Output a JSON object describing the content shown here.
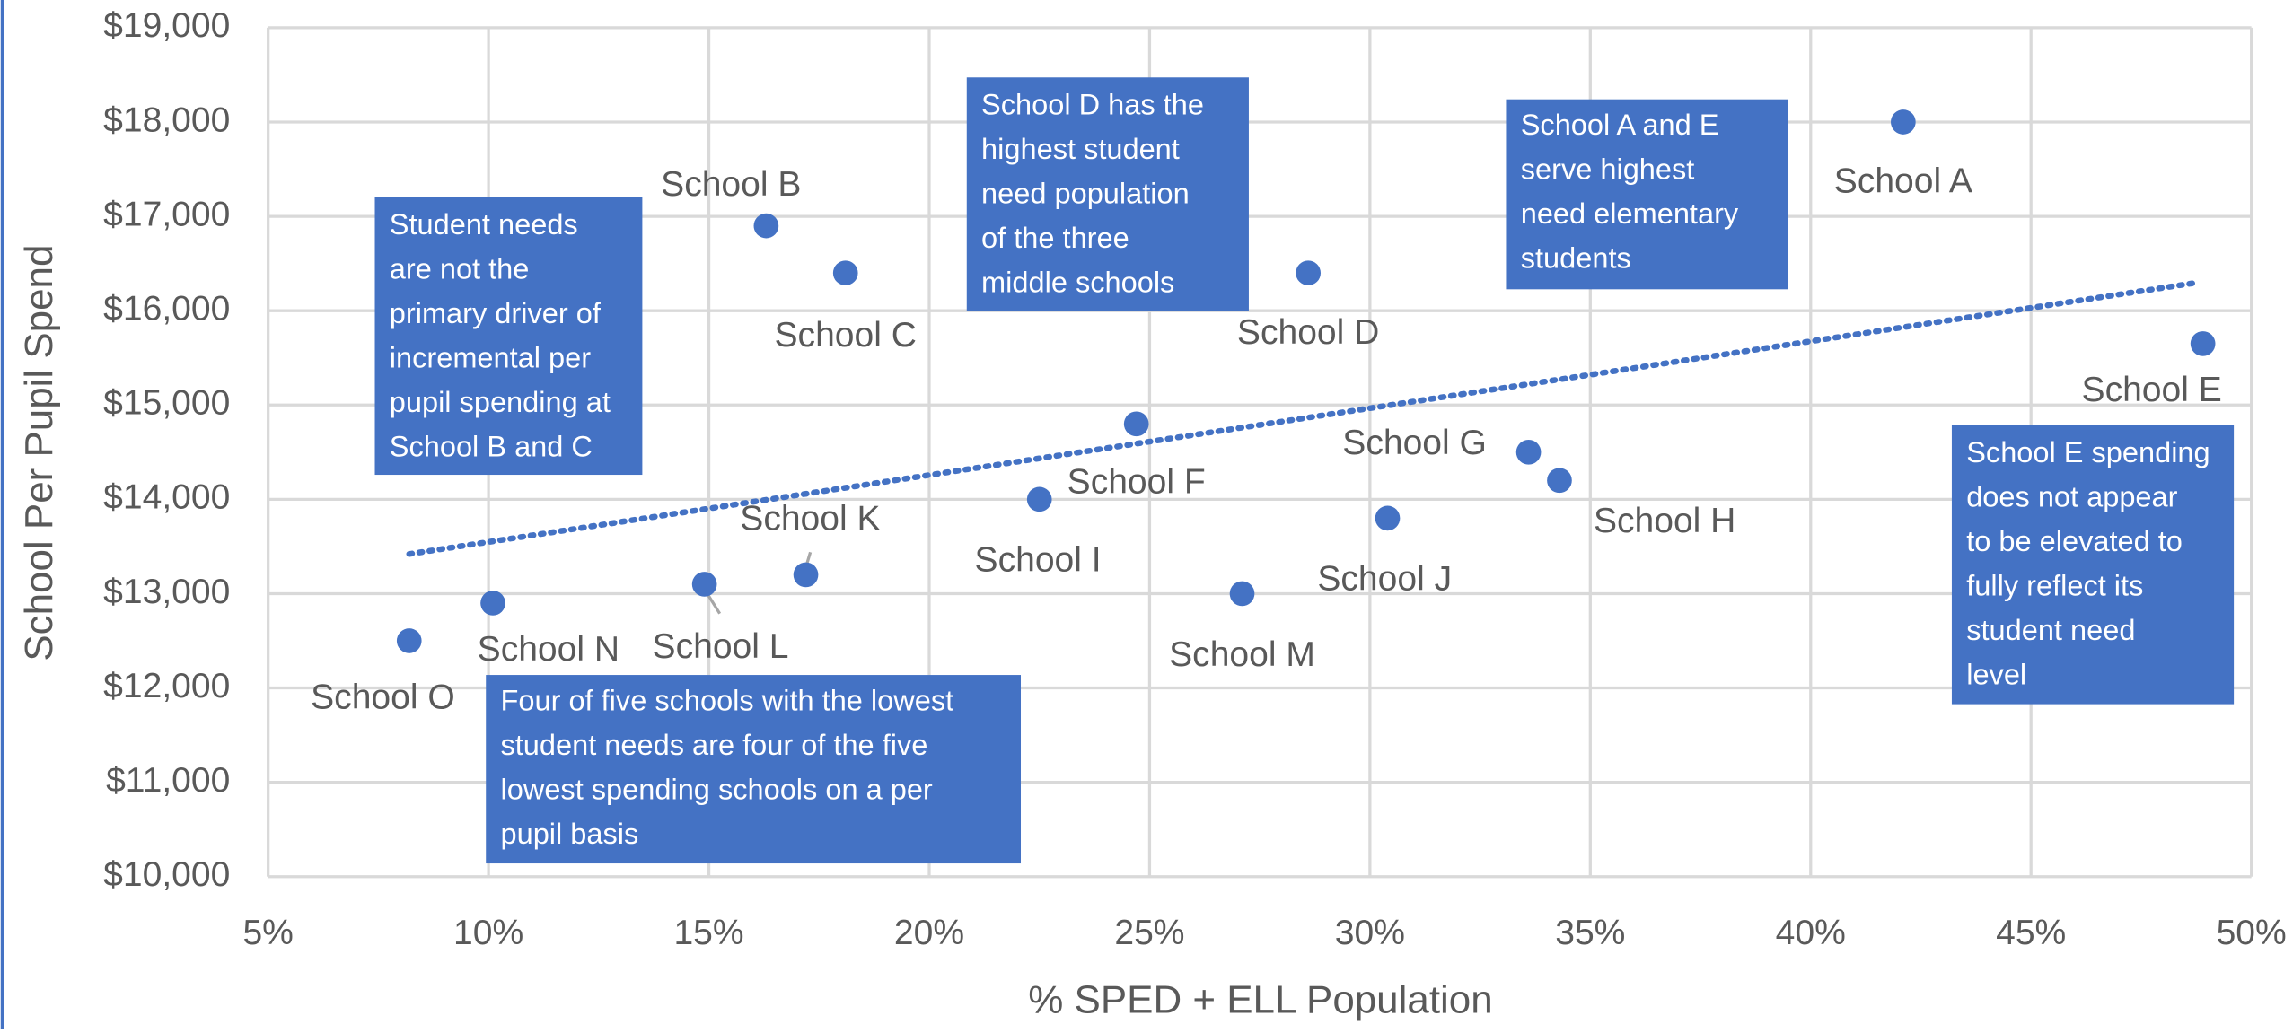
{
  "chart_data": {
    "type": "scatter",
    "xlabel": "% SPED + ELL Population",
    "ylabel": "School Per Pupil Spend",
    "series": [
      {
        "color": "#4472c4",
        "names": [
          "School O",
          "School N",
          "School L",
          "School K",
          "School B",
          "School C",
          "School I",
          "School F",
          "School M",
          "School D",
          "School J",
          "School G",
          "School H",
          "School A",
          "School E"
        ],
        "x": [
          8.2,
          10.1,
          14.9,
          17.2,
          16.3,
          18.1,
          22.5,
          24.7,
          27.1,
          28.6,
          30.4,
          33.6,
          34.3,
          42.1,
          48.9
        ],
        "values": [
          12500,
          12900,
          13100,
          13200,
          16900,
          16400,
          14000,
          14800,
          13000,
          16400,
          13800,
          14500,
          14200,
          18000,
          15650
        ]
      }
    ],
    "trendline": {
      "color": "#4472c4",
      "x": [
        8.2,
        48.8
      ],
      "values": [
        13420,
        16300
      ]
    },
    "xlim": [
      5,
      50
    ],
    "xticks": [
      {
        "value": 5,
        "label": "5%"
      },
      {
        "value": 10,
        "label": "10%"
      },
      {
        "value": 15,
        "label": "15%"
      },
      {
        "value": 20,
        "label": "20%"
      },
      {
        "value": 25,
        "label": "25%"
      },
      {
        "value": 30,
        "label": "30%"
      },
      {
        "value": 35,
        "label": "35%"
      },
      {
        "value": 40,
        "label": "40%"
      },
      {
        "value": 45,
        "label": "45%"
      },
      {
        "value": 50,
        "label": "50%"
      }
    ],
    "ylim": [
      10000,
      19000
    ],
    "yticks": [
      {
        "value": 10000,
        "label": "$10,000"
      },
      {
        "value": 11000,
        "label": "$11,000"
      },
      {
        "value": 12000,
        "label": "$12,000"
      },
      {
        "value": 13000,
        "label": "$13,000"
      },
      {
        "value": 14000,
        "label": "$14,000"
      },
      {
        "value": 15000,
        "label": "$15,000"
      },
      {
        "value": 16000,
        "label": "$16,000"
      },
      {
        "value": 17000,
        "label": "$17,000"
      },
      {
        "value": 18000,
        "label": "$18,000"
      },
      {
        "value": 19000,
        "label": "$19,000"
      }
    ],
    "grid": true,
    "annotations": [
      [
        "Student needs",
        "are not the",
        "primary driver of",
        "incremental per",
        "pupil spending at",
        "School B and C"
      ],
      [
        "School D has the",
        "highest student",
        "need population",
        "of the three",
        "middle schools"
      ],
      [
        "School A and E",
        "serve highest",
        "need elementary",
        "students"
      ],
      [
        "School E spending",
        "does not appear",
        "to be elevated to",
        "fully reflect its",
        "student need",
        "level"
      ],
      [
        "Four of five schools with the lowest",
        "student needs are four of the five",
        "lowest spending schools on a per",
        "pupil basis"
      ]
    ]
  }
}
